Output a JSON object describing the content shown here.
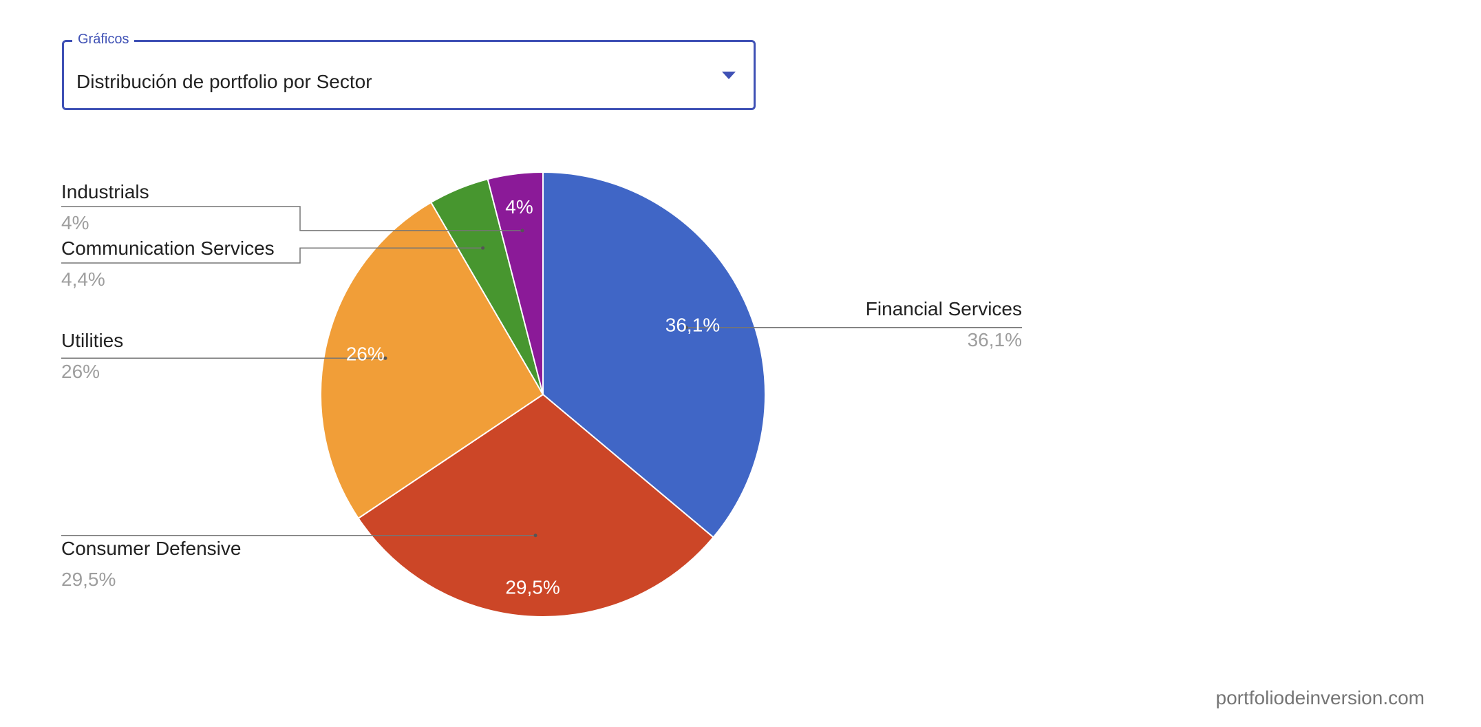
{
  "selector": {
    "legend": "Gráficos",
    "value": "Distribución de portfolio por Sector"
  },
  "chart_data": {
    "type": "pie",
    "title": "",
    "slices": [
      {
        "label": "Financial Services",
        "value": 36.1,
        "display": "36,1%",
        "color": "#4066c6"
      },
      {
        "label": "Consumer Defensive",
        "value": 29.5,
        "display": "29,5%",
        "color": "#cc4627"
      },
      {
        "label": "Utilities",
        "value": 26.0,
        "display": "26%",
        "color": "#f19e38"
      },
      {
        "label": "Communication Services",
        "value": 4.4,
        "display": "4,4%",
        "color": "#47962f"
      },
      {
        "label": "Industrials",
        "value": 4.0,
        "display": "4%",
        "color": "#8b1a98"
      }
    ],
    "legend": "labeled",
    "start_angle_deg": 0,
    "direction": "clockwise"
  },
  "watermark": "portfoliodeinversion.com"
}
